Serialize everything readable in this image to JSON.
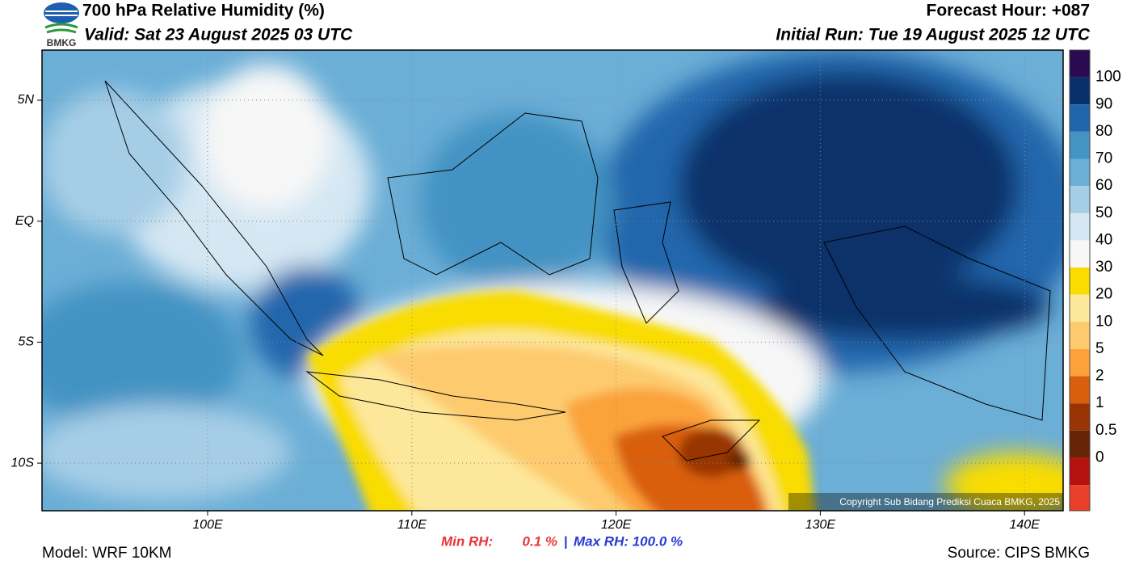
{
  "header": {
    "logo_text": "BMKG",
    "title": "700 hPa Relative Humidity (%)",
    "valid": "Valid: Sat 23 August 2025 03 UTC",
    "forecast_hour": "Forecast Hour: +087",
    "initial_run": "Initial Run: Tue 19 August 2025 12 UTC"
  },
  "map": {
    "lat_labels": [
      "5N",
      "EQ",
      "5S",
      "10S"
    ],
    "lon_labels": [
      "100E",
      "110E",
      "120E",
      "130E",
      "140E"
    ],
    "copyright": "Copyright Sub Bidang Prediksi Cuaca BMKG, 2025"
  },
  "colorbar": {
    "colors": [
      "#2a0a50",
      "#08306b",
      "#2166ac",
      "#4393c3",
      "#6baed6",
      "#a6cde6",
      "#d4e7f3",
      "#f7f7f7",
      "#f9dc00",
      "#fde79a",
      "#fdcb6e",
      "#fba33a",
      "#d95f0e",
      "#993404",
      "#662506",
      "#b3120f",
      "#e8402a"
    ],
    "levels": [
      100,
      90,
      80,
      70,
      60,
      50,
      40,
      30,
      20,
      10,
      5,
      2,
      1,
      0.5,
      0
    ]
  },
  "footer": {
    "model": "Model: WRF 10KM",
    "min_label": "Min RH:",
    "min_value": "0.1 %",
    "separator": "|",
    "max_text": "Max RH: 100.0 %",
    "source": "Source: CIPS BMKG"
  }
}
